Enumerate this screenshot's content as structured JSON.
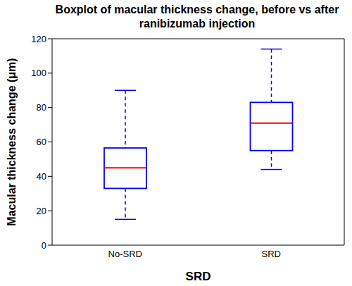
{
  "chart_data": {
    "type": "box",
    "title": "Boxplot of macular thickness change, before vs after ranibizumab injection",
    "x_label": "SRD",
    "y_label": "Macular thickness change (μm)",
    "categories": [
      "No-SRD",
      "SRD"
    ],
    "min": [
      15,
      44
    ],
    "q1": [
      33,
      55
    ],
    "median": [
      45,
      71
    ],
    "q3": [
      56.5,
      83
    ],
    "max": [
      90,
      114
    ],
    "color": "#0000ff",
    "line_style": "dashed",
    "ylim": [
      0,
      120
    ],
    "yticks": [
      0,
      20,
      40,
      60,
      80,
      100,
      120
    ],
    "grid": false
  }
}
